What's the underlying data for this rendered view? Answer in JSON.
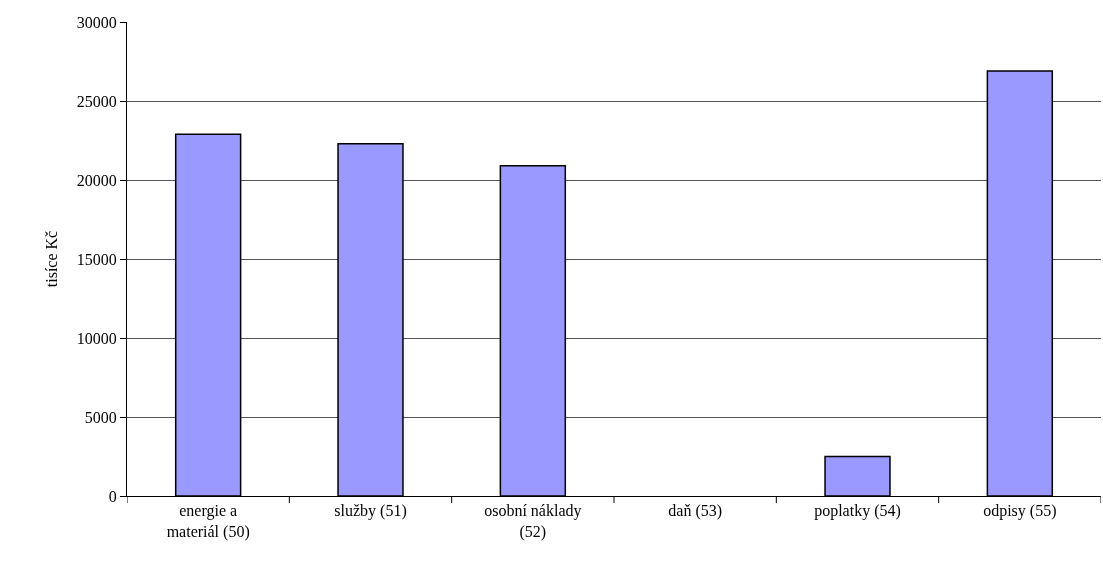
{
  "chart_data": {
    "type": "bar",
    "ylabel": "tisíce Kč",
    "categories": [
      "energie a materiál (50)",
      "služby (51)",
      "osobní náklady (52)",
      "daň (53)",
      "poplatky (54)",
      "odpisy (55)"
    ],
    "values": [
      22900,
      22300,
      20900,
      0,
      2500,
      26900
    ],
    "color": "#9999ff",
    "ylim": [
      0,
      30000
    ],
    "yticks": [
      0,
      5000,
      10000,
      15000,
      20000,
      25000,
      30000
    ],
    "grid": "y",
    "legend": false
  }
}
